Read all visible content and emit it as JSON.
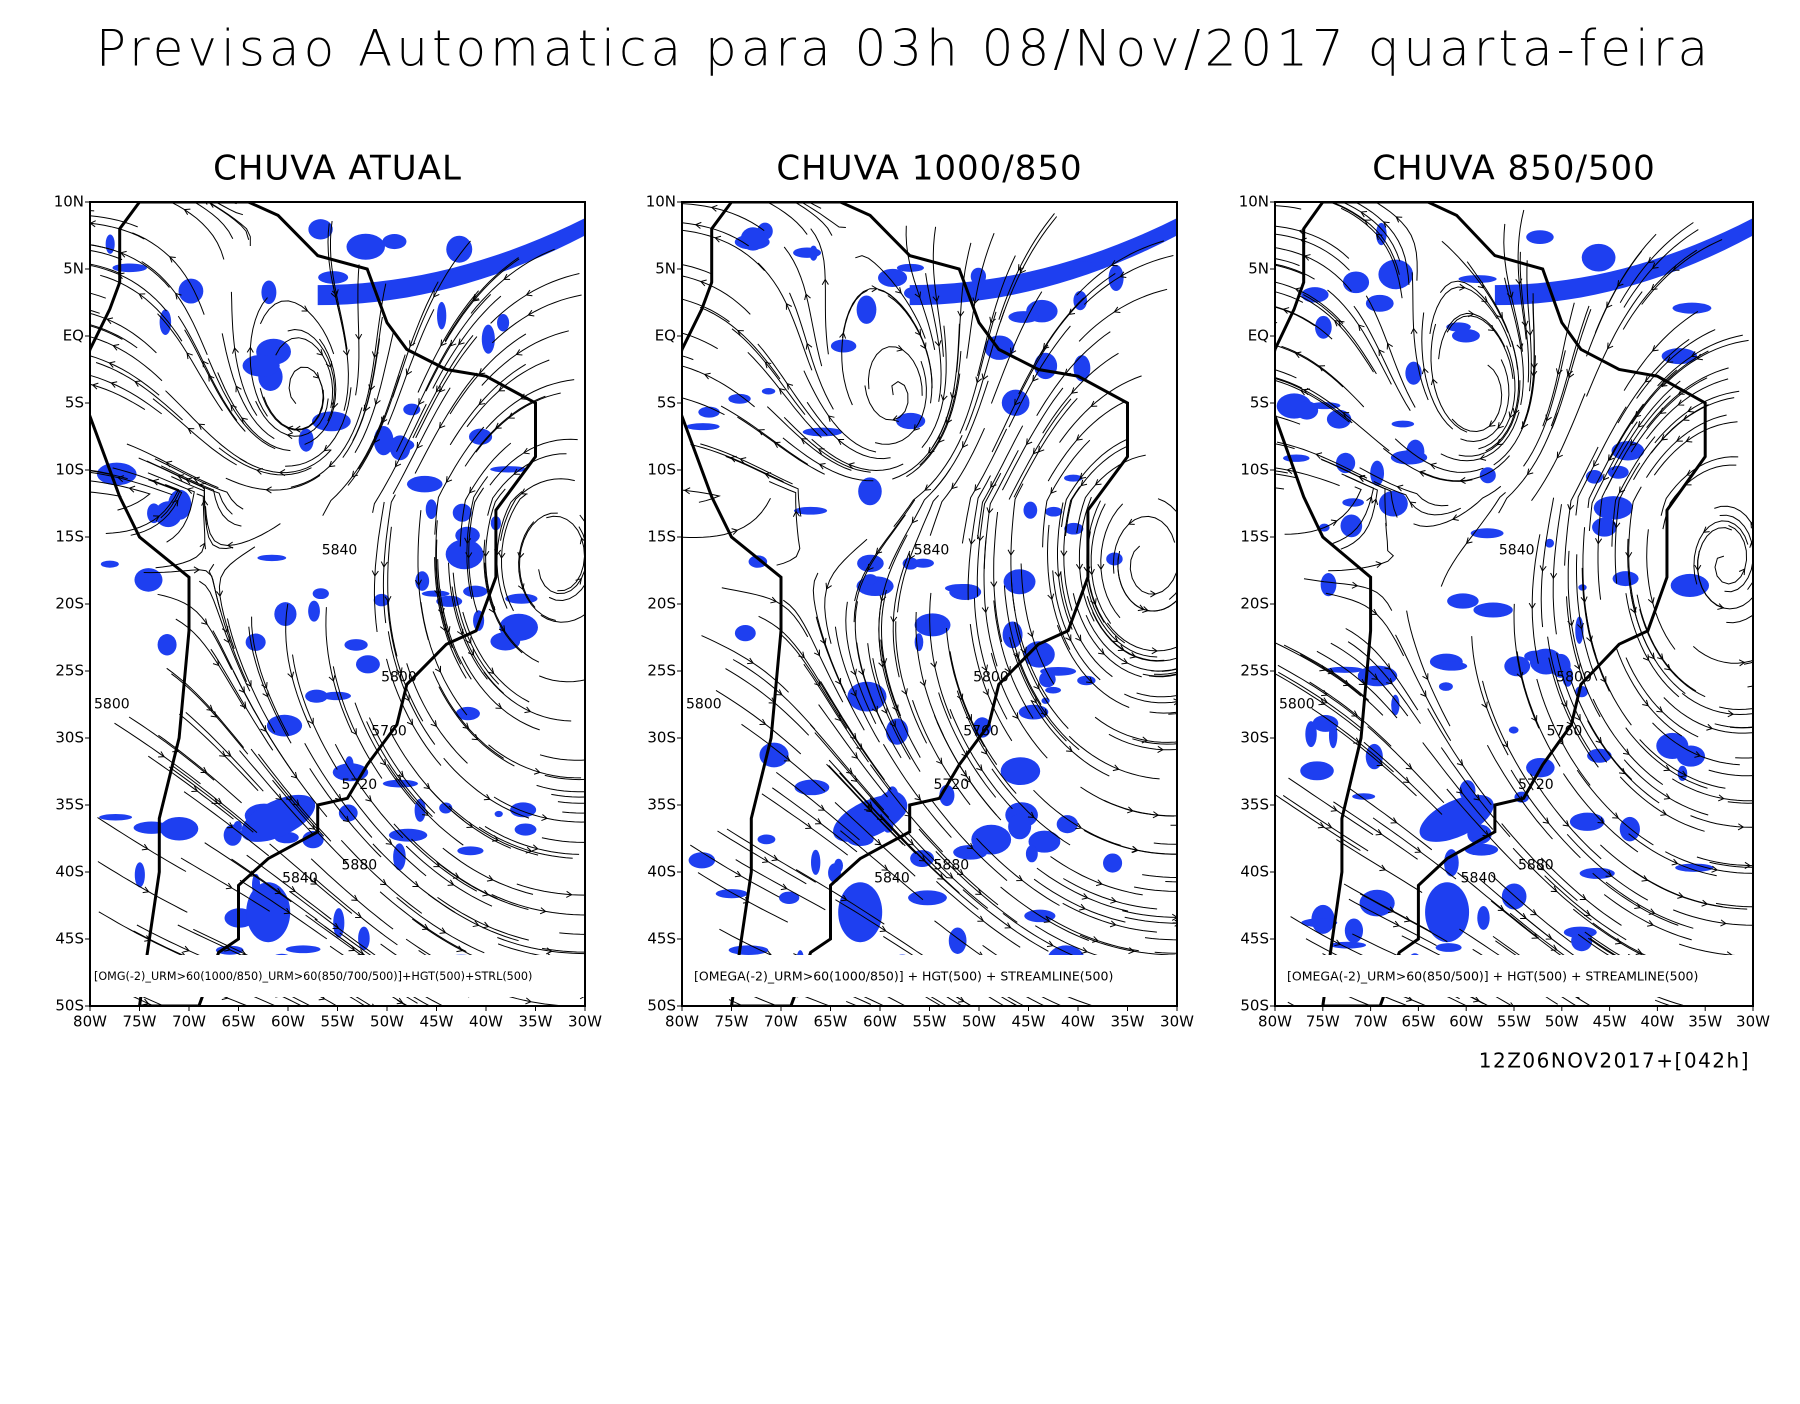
{
  "header": {
    "title": "Previsao Automatica para 03h 08/Nov/2017 quarta-feira"
  },
  "axes": {
    "lat_labels": [
      "10N",
      "5N",
      "EQ",
      "5S",
      "10S",
      "15S",
      "20S",
      "25S",
      "30S",
      "35S",
      "40S",
      "45S",
      "50S"
    ],
    "lon_labels": [
      "80W",
      "75W",
      "70W",
      "65W",
      "60W",
      "55W",
      "50W",
      "45W",
      "40W",
      "35W",
      "30W"
    ]
  },
  "panels": [
    {
      "title": "CHUVA ATUAL",
      "legend": "[OMG(-2)_URM>60(1000/850)_URM>60(850/700/500)]+HGT(500)+STRL(500)",
      "contour_labels": [
        "5840",
        "5800",
        "5800",
        "5760",
        "5720",
        "5880",
        "5840"
      ]
    },
    {
      "title": "CHUVA 1000/850",
      "legend": "[OMEGA(-2)_URM>60(1000/850)] + HGT(500) + STREAMLINE(500)",
      "contour_labels": [
        "5840",
        "5800",
        "5800",
        "5760",
        "5720",
        "5880",
        "5840"
      ]
    },
    {
      "title": "CHUVA 850/500",
      "legend": "[OMEGA(-2)_URM>60(850/500)] + HGT(500) + STREAMLINE(500)",
      "contour_labels": [
        "5840",
        "5800",
        "5800",
        "5760",
        "5720",
        "5880",
        "5840"
      ]
    }
  ],
  "footer": "12Z06NOV2017+[042h]"
}
